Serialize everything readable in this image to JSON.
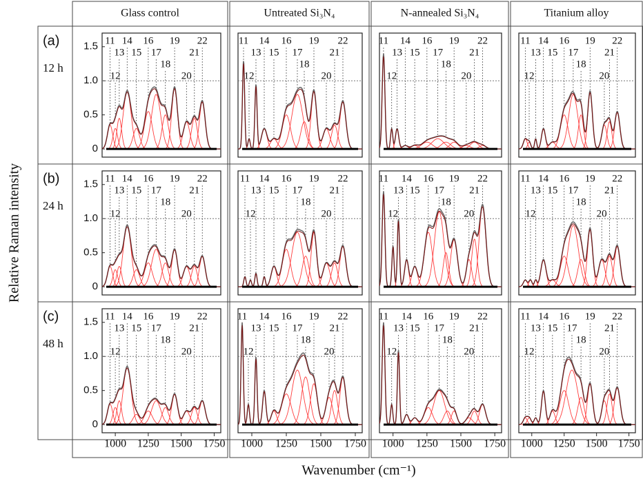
{
  "ylabel": "Relative Raman intensity",
  "xlabel": "Wavenumber (cm⁻¹)",
  "columns": [
    "Glass control",
    "Untreated Si₃N₄",
    "N-annealed Si₃N₄",
    "Titanium alloy"
  ],
  "rows": [
    {
      "label": "(a)",
      "time": "12 h"
    },
    {
      "label": "(b)",
      "time": "24 h"
    },
    {
      "label": "(c)",
      "time": "48 h"
    }
  ],
  "component_color": "#ff3b3b",
  "envelope_color": "#666666",
  "chart_data": [
    {
      "type": "line",
      "xlim": [
        900,
        1800
      ],
      "ylim": [
        -0.12,
        1.7
      ],
      "yticks": [
        0,
        {
          "value": 0.5,
          "label": "0.5"
        },
        {
          "value": 1,
          "label": "1.0"
        },
        1.5
      ],
      "hline": 1,
      "bands": [
        "11",
        "12",
        "13",
        "14",
        "15",
        "16",
        "17",
        "18",
        "19",
        "20",
        "21",
        "22"
      ],
      "centers": [
        960,
        1000,
        1030,
        1090,
        1160,
        1250,
        1310,
        1380,
        1450,
        1540,
        1600,
        1660
      ],
      "heights": [
        0.35,
        0.3,
        0.45,
        0.85,
        0.3,
        0.55,
        0.8,
        0.5,
        0.9,
        0.4,
        0.45,
        0.7
      ],
      "widths": [
        20,
        18,
        18,
        30,
        25,
        30,
        35,
        25,
        22,
        25,
        22,
        22
      ]
    },
    {
      "type": "line",
      "xlim": [
        900,
        1800
      ],
      "ylim": [
        -0.12,
        1.7
      ],
      "hline": 1,
      "bands": [
        "11",
        "12",
        "13",
        "14",
        "15",
        "16",
        "17",
        "18",
        "19",
        "20",
        "21",
        "22"
      ],
      "centers": [
        940,
        980,
        1030,
        1090,
        1160,
        1250,
        1330,
        1380,
        1450,
        1540,
        1600,
        1660
      ],
      "heights": [
        1.3,
        0.15,
        0.95,
        0.3,
        0.15,
        0.5,
        0.8,
        0.4,
        0.85,
        0.3,
        0.35,
        0.7
      ],
      "widths": [
        8,
        8,
        8,
        20,
        25,
        30,
        40,
        25,
        20,
        25,
        22,
        22
      ]
    },
    {
      "type": "line",
      "xlim": [
        900,
        1800
      ],
      "ylim": [
        -0.12,
        1.7
      ],
      "hline": 1,
      "bands": [
        "11",
        "12",
        "13",
        "14",
        "15",
        "16",
        "17",
        "18",
        "19",
        "20",
        "21",
        "22"
      ],
      "centers": [
        930,
        990,
        1030,
        1090,
        1160,
        1250,
        1330,
        1390,
        1450,
        1540,
        1600,
        1660
      ],
      "heights": [
        1.4,
        0.3,
        0.3,
        0.05,
        0.05,
        0.1,
        0.15,
        0.1,
        0.1,
        0.05,
        0.1,
        0.05
      ],
      "widths": [
        10,
        8,
        12,
        20,
        25,
        40,
        45,
        35,
        30,
        30,
        30,
        25
      ]
    },
    {
      "type": "line",
      "xlim": [
        900,
        1800
      ],
      "ylim": [
        -0.12,
        1.7
      ],
      "hline": 1,
      "bands": [
        "11",
        "12",
        "13",
        "14",
        "15",
        "16",
        "17",
        "18",
        "19",
        "20",
        "21",
        "22"
      ],
      "centers": [
        950,
        980,
        1030,
        1090,
        1160,
        1250,
        1320,
        1380,
        1450,
        1560,
        1600,
        1660
      ],
      "heights": [
        0.15,
        0.1,
        0.15,
        0.3,
        0.1,
        0.5,
        0.8,
        0.5,
        0.85,
        0.35,
        0.4,
        0.55
      ],
      "widths": [
        15,
        12,
        8,
        15,
        25,
        30,
        35,
        20,
        18,
        20,
        18,
        20
      ]
    },
    {
      "type": "line",
      "xlim": [
        900,
        1800
      ],
      "ylim": [
        -0.12,
        1.7
      ],
      "yticks": [
        0,
        {
          "value": 0.5,
          "label": "0.5"
        },
        {
          "value": 1,
          "label": "1.0"
        },
        1.5
      ],
      "hline": 1,
      "bands": [
        "11",
        "12",
        "13",
        "14",
        "15",
        "16",
        "17",
        "18",
        "19",
        "20",
        "21",
        "22"
      ],
      "centers": [
        960,
        1000,
        1030,
        1090,
        1160,
        1250,
        1310,
        1380,
        1450,
        1540,
        1600,
        1660
      ],
      "heights": [
        0.3,
        0.25,
        0.3,
        0.9,
        0.25,
        0.35,
        0.55,
        0.35,
        0.55,
        0.3,
        0.3,
        0.45
      ],
      "widths": [
        20,
        18,
        18,
        30,
        25,
        30,
        35,
        25,
        22,
        25,
        22,
        22
      ]
    },
    {
      "type": "line",
      "xlim": [
        900,
        1800
      ],
      "ylim": [
        -0.12,
        1.7
      ],
      "hline": 1,
      "bands": [
        "11",
        "12",
        "13",
        "14",
        "15",
        "16",
        "17",
        "18",
        "19",
        "20",
        "21",
        "22"
      ],
      "centers": [
        950,
        990,
        1030,
        1090,
        1160,
        1250,
        1330,
        1390,
        1450,
        1540,
        1600,
        1660
      ],
      "heights": [
        0.15,
        0.1,
        0.2,
        0.15,
        0.3,
        0.55,
        0.8,
        0.45,
        0.8,
        0.35,
        0.35,
        0.6
      ],
      "widths": [
        8,
        8,
        8,
        8,
        20,
        30,
        40,
        25,
        20,
        25,
        22,
        22
      ]
    },
    {
      "type": "line",
      "xlim": [
        900,
        1800
      ],
      "ylim": [
        -0.12,
        1.7
      ],
      "hline": 1,
      "bands": [
        "11",
        "12",
        "13",
        "14",
        "15",
        "16",
        "17",
        "18",
        "19",
        "20",
        "21",
        "22"
      ],
      "centers": [
        930,
        1000,
        1040,
        1100,
        1160,
        1260,
        1340,
        1390,
        1450,
        1560,
        1600,
        1660
      ],
      "heights": [
        1.4,
        0.6,
        1.0,
        0.4,
        0.3,
        0.8,
        1.1,
        0.5,
        0.7,
        0.4,
        0.7,
        1.2
      ],
      "widths": [
        10,
        8,
        8,
        15,
        20,
        30,
        35,
        20,
        25,
        20,
        20,
        25
      ]
    },
    {
      "type": "line",
      "xlim": [
        900,
        1800
      ],
      "ylim": [
        -0.12,
        1.7
      ],
      "hline": 1,
      "bands": [
        "11",
        "12",
        "13",
        "14",
        "15",
        "16",
        "17",
        "18",
        "19",
        "20",
        "21",
        "22"
      ],
      "centers": [
        950,
        990,
        1030,
        1090,
        1160,
        1250,
        1320,
        1380,
        1450,
        1540,
        1600,
        1660
      ],
      "heights": [
        0.1,
        0.1,
        0.1,
        0.4,
        0.1,
        0.45,
        0.9,
        0.4,
        0.85,
        0.4,
        0.45,
        0.6
      ],
      "widths": [
        15,
        12,
        10,
        20,
        25,
        30,
        40,
        25,
        20,
        25,
        22,
        22
      ]
    },
    {
      "type": "line",
      "xlim": [
        900,
        1800
      ],
      "ylim": [
        -0.12,
        1.7
      ],
      "yticks": [
        0,
        {
          "value": 0.5,
          "label": "0.5"
        },
        {
          "value": 1,
          "label": "1.0"
        },
        1.5
      ],
      "hline": 1,
      "bands": [
        "11",
        "12",
        "13",
        "14",
        "15",
        "16",
        "17",
        "18",
        "19",
        "20",
        "21",
        "22"
      ],
      "centers": [
        960,
        1000,
        1030,
        1090,
        1160,
        1250,
        1310,
        1380,
        1450,
        1540,
        1600,
        1660
      ],
      "heights": [
        0.3,
        0.25,
        0.35,
        0.85,
        0.15,
        0.2,
        0.35,
        0.25,
        0.45,
        0.2,
        0.25,
        0.35
      ],
      "widths": [
        20,
        18,
        18,
        30,
        25,
        30,
        35,
        25,
        22,
        25,
        22,
        22
      ],
      "xticks": [
        1000,
        1250,
        1500,
        1750
      ]
    },
    {
      "type": "line",
      "xlim": [
        900,
        1800
      ],
      "ylim": [
        -0.12,
        1.7
      ],
      "hline": 1,
      "bands": [
        "11",
        "12",
        "13",
        "14",
        "15",
        "16",
        "17",
        "18",
        "19",
        "20",
        "21",
        "22"
      ],
      "centers": [
        930,
        975,
        1030,
        1090,
        1160,
        1250,
        1330,
        1390,
        1450,
        1560,
        1600,
        1660
      ],
      "heights": [
        1.5,
        0.3,
        1.0,
        0.5,
        0.2,
        0.45,
        0.8,
        0.7,
        0.6,
        0.4,
        0.5,
        0.7
      ],
      "widths": [
        8,
        8,
        8,
        12,
        20,
        35,
        40,
        30,
        25,
        25,
        22,
        22
      ],
      "xticks": [
        1000,
        1250,
        1500,
        1750
      ]
    },
    {
      "type": "line",
      "xlim": [
        900,
        1800
      ],
      "ylim": [
        -0.12,
        1.7
      ],
      "hline": 1,
      "bands": [
        "11",
        "12",
        "13",
        "14",
        "15",
        "16",
        "17",
        "18",
        "19",
        "20",
        "21",
        "22"
      ],
      "centers": [
        930,
        990,
        1040,
        1100,
        1160,
        1260,
        1340,
        1400,
        1450,
        1560,
        1600,
        1660
      ],
      "heights": [
        1.5,
        0.3,
        1.1,
        0.15,
        0.1,
        0.25,
        0.5,
        0.2,
        0.2,
        0.1,
        0.2,
        0.3
      ],
      "widths": [
        10,
        8,
        8,
        15,
        20,
        30,
        40,
        25,
        20,
        25,
        22,
        22
      ],
      "xticks": [
        1000,
        1250,
        1500,
        1750
      ]
    },
    {
      "type": "line",
      "xlim": [
        900,
        1800
      ],
      "ylim": [
        -0.12,
        1.7
      ],
      "hline": 1,
      "bands": [
        "11",
        "12",
        "13",
        "14",
        "15",
        "16",
        "17",
        "18",
        "19",
        "20",
        "21",
        "22"
      ],
      "centers": [
        950,
        980,
        1030,
        1090,
        1160,
        1250,
        1310,
        1380,
        1450,
        1560,
        1600,
        1660
      ],
      "heights": [
        0.1,
        0.1,
        0.1,
        0.5,
        0.2,
        0.5,
        0.8,
        0.4,
        0.6,
        0.35,
        0.45,
        0.55
      ],
      "widths": [
        15,
        15,
        12,
        15,
        20,
        35,
        45,
        25,
        20,
        20,
        20,
        22
      ],
      "xticks": [
        1000,
        1250,
        1500,
        1750
      ]
    }
  ]
}
